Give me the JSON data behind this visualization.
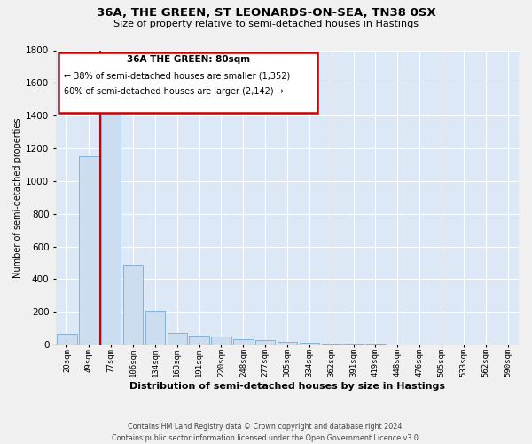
{
  "title": "36A, THE GREEN, ST LEONARDS-ON-SEA, TN38 0SX",
  "subtitle": "Size of property relative to semi-detached houses in Hastings",
  "xlabel": "Distribution of semi-detached houses by size in Hastings",
  "ylabel": "Number of semi-detached properties",
  "bar_color": "#ccddf0",
  "bar_edge_color": "#7aaad0",
  "background_color": "#dce8f5",
  "grid_color": "#ffffff",
  "annotation_title": "36A THE GREEN: 80sqm",
  "annotation_line1": "← 38% of semi-detached houses are smaller (1,352)",
  "annotation_line2": "60% of semi-detached houses are larger (2,142) →",
  "annotation_box_color": "#ffffff",
  "annotation_box_edge": "#cc0000",
  "property_line_color": "#cc0000",
  "footer_line1": "Contains HM Land Registry data © Crown copyright and database right 2024.",
  "footer_line2": "Contains public sector information licensed under the Open Government Licence v3.0.",
  "categories": [
    "20sqm",
    "49sqm",
    "77sqm",
    "106sqm",
    "134sqm",
    "163sqm",
    "191sqm",
    "220sqm",
    "248sqm",
    "277sqm",
    "305sqm",
    "334sqm",
    "362sqm",
    "391sqm",
    "419sqm",
    "448sqm",
    "476sqm",
    "505sqm",
    "533sqm",
    "562sqm",
    "590sqm"
  ],
  "values": [
    65,
    1150,
    1430,
    490,
    205,
    70,
    55,
    48,
    35,
    25,
    18,
    10,
    8,
    4,
    3,
    2,
    1,
    1,
    1,
    0,
    1
  ],
  "ylim": [
    0,
    1800
  ],
  "yticks": [
    0,
    200,
    400,
    600,
    800,
    1000,
    1200,
    1400,
    1600,
    1800
  ],
  "property_line_bar_index": 2
}
